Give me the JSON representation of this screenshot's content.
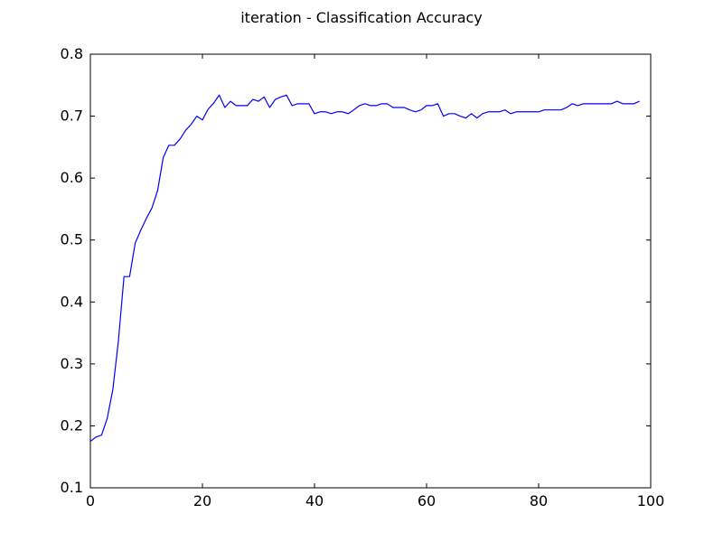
{
  "chart_data": {
    "type": "line",
    "title": "iteration - Classification Accuracy",
    "xlabel": "",
    "ylabel": "",
    "xlim": [
      0,
      100
    ],
    "ylim": [
      0.1,
      0.8
    ],
    "x_ticks": [
      "0",
      "20",
      "40",
      "60",
      "80",
      "100"
    ],
    "y_ticks": [
      "0.1",
      "0.2",
      "0.3",
      "0.4",
      "0.5",
      "0.6",
      "0.7",
      "0.8"
    ],
    "grid": false,
    "line_color": "#0000ff",
    "series": [
      {
        "x": [
          0,
          1,
          2,
          3,
          4,
          5,
          6,
          7,
          8,
          9,
          10,
          11,
          12,
          13,
          14,
          15,
          16,
          17,
          18,
          19,
          20,
          21,
          22,
          23,
          24,
          25,
          26,
          27,
          28,
          29,
          30,
          31,
          32,
          33,
          34,
          35,
          36,
          37,
          38,
          39,
          40,
          41,
          42,
          43,
          44,
          45,
          46,
          47,
          48,
          49,
          50,
          51,
          52,
          53,
          54,
          55,
          56,
          57,
          58,
          59,
          60,
          61,
          62,
          63,
          64,
          65,
          66,
          67,
          68,
          69,
          70,
          71,
          72,
          73,
          74,
          75,
          76,
          77,
          78,
          79,
          80,
          81,
          82,
          83,
          84,
          85,
          86,
          87,
          88,
          89,
          90,
          91,
          92,
          93,
          94,
          95,
          96,
          97,
          98
        ],
        "y": [
          0.175,
          0.182,
          0.185,
          0.212,
          0.258,
          0.337,
          0.441,
          0.441,
          0.495,
          0.516,
          0.535,
          0.552,
          0.58,
          0.633,
          0.653,
          0.653,
          0.663,
          0.677,
          0.687,
          0.7,
          0.694,
          0.711,
          0.721,
          0.734,
          0.714,
          0.724,
          0.717,
          0.717,
          0.717,
          0.727,
          0.724,
          0.731,
          0.714,
          0.727,
          0.731,
          0.734,
          0.717,
          0.72,
          0.72,
          0.72,
          0.704,
          0.707,
          0.707,
          0.704,
          0.707,
          0.707,
          0.704,
          0.71,
          0.717,
          0.72,
          0.717,
          0.717,
          0.72,
          0.72,
          0.714,
          0.714,
          0.714,
          0.71,
          0.707,
          0.71,
          0.717,
          0.717,
          0.72,
          0.7,
          0.704,
          0.704,
          0.7,
          0.697,
          0.704,
          0.697,
          0.704,
          0.707,
          0.707,
          0.707,
          0.71,
          0.704,
          0.707,
          0.707,
          0.707,
          0.707,
          0.707,
          0.71,
          0.71,
          0.71,
          0.71,
          0.714,
          0.72,
          0.717,
          0.72,
          0.72,
          0.72,
          0.72,
          0.72,
          0.72,
          0.724,
          0.72,
          0.72,
          0.72,
          0.724
        ]
      }
    ]
  }
}
